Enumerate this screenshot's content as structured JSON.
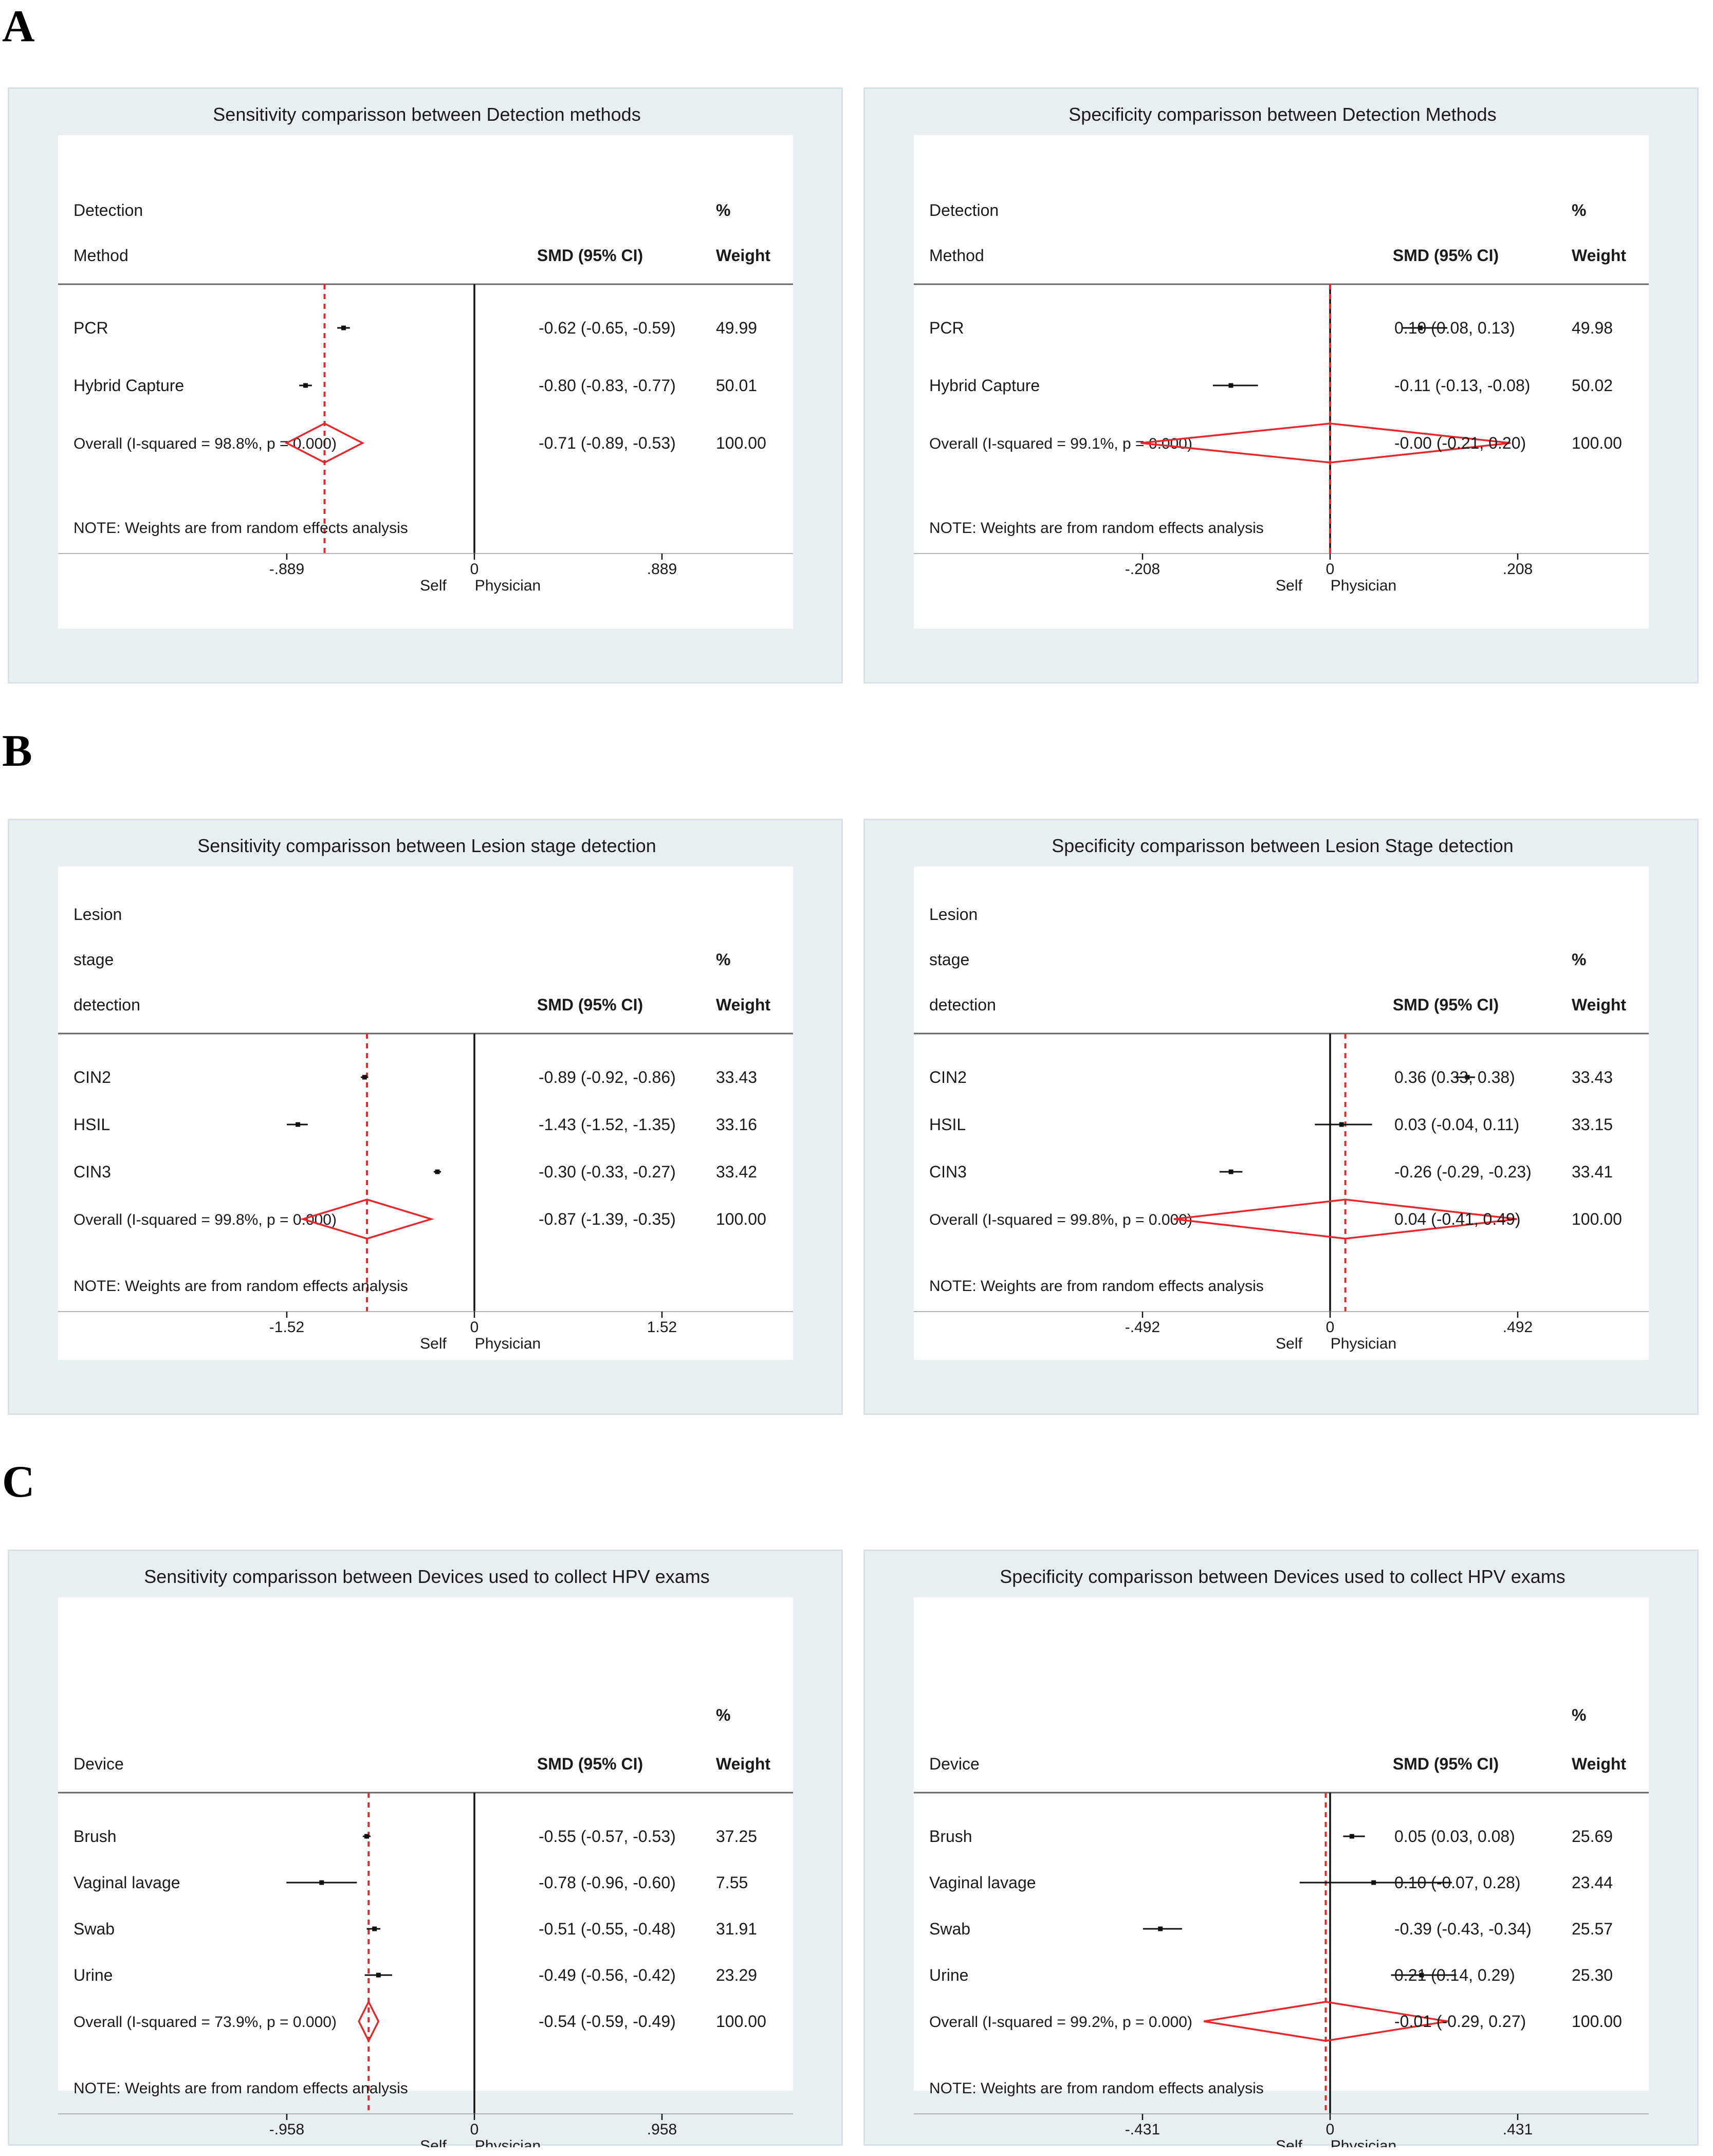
{
  "sections": [
    {
      "letter": "A"
    },
    {
      "letter": "B"
    },
    {
      "letter": "C"
    }
  ],
  "common": {
    "smd_header": "SMD (95% CI)",
    "pct_header": "%",
    "weight_header": "Weight",
    "self_label": "Self",
    "physician_label": "Physician"
  },
  "chart_data": [
    {
      "type": "forest",
      "section": "A",
      "title": "Sensitivity comparisson between Detection methods",
      "group_header": [
        "Detection",
        "Method"
      ],
      "note": "NOTE: Weights are from random effects analysis",
      "xlim": [
        -0.889,
        0.889
      ],
      "xticks": [
        "-.889",
        "0",
        ".889"
      ],
      "overall_label": "Overall  (I-squared = 98.8%, p = 0.000)",
      "rows": [
        {
          "label": "PCR",
          "est": -0.62,
          "lo": -0.65,
          "hi": -0.59,
          "text": "-0.62 (-0.65, -0.59)",
          "weight": "49.99"
        },
        {
          "label": "Hybrid Capture",
          "est": -0.8,
          "lo": -0.83,
          "hi": -0.77,
          "text": "-0.80 (-0.83, -0.77)",
          "weight": "50.01"
        }
      ],
      "overall": {
        "est": -0.71,
        "lo": -0.89,
        "hi": -0.53,
        "text": "-0.71 (-0.89, -0.53)",
        "weight": "100.00"
      }
    },
    {
      "type": "forest",
      "section": "A",
      "title": "Specificity comparisson between Detection Methods",
      "group_header": [
        "Detection",
        "Method"
      ],
      "note": "NOTE: Weights are from random effects analysis",
      "xlim": [
        -0.208,
        0.208
      ],
      "xticks": [
        "-.208",
        "0",
        ".208"
      ],
      "overall_label": "Overall  (I-squared = 99.1%, p = 0.000)",
      "rows": [
        {
          "label": "PCR",
          "est": 0.1,
          "lo": 0.08,
          "hi": 0.13,
          "text": "0.10 (0.08, 0.13)",
          "weight": "49.98"
        },
        {
          "label": "Hybrid Capture",
          "est": -0.11,
          "lo": -0.13,
          "hi": -0.08,
          "text": "-0.11 (-0.13, -0.08)",
          "weight": "50.02"
        }
      ],
      "overall": {
        "est": -0.0,
        "lo": -0.21,
        "hi": 0.2,
        "text": "-0.00 (-0.21, 0.20)",
        "weight": "100.00"
      }
    },
    {
      "type": "forest",
      "section": "B",
      "title": "Sensitivity comparisson between Lesion stage detection",
      "group_header": [
        "Lesion",
        "stage",
        "detection"
      ],
      "note": "NOTE: Weights are from random effects analysis",
      "xlim": [
        -1.52,
        1.52
      ],
      "xticks": [
        "-1.52",
        "0",
        "1.52"
      ],
      "overall_label": "Overall  (I-squared = 99.8%, p = 0.000)",
      "rows": [
        {
          "label": "CIN2",
          "est": -0.89,
          "lo": -0.92,
          "hi": -0.86,
          "text": "-0.89 (-0.92, -0.86)",
          "weight": "33.43"
        },
        {
          "label": "HSIL",
          "est": -1.43,
          "lo": -1.52,
          "hi": -1.35,
          "text": "-1.43 (-1.52, -1.35)",
          "weight": "33.16"
        },
        {
          "label": "CIN3",
          "est": -0.3,
          "lo": -0.33,
          "hi": -0.27,
          "text": "-0.30 (-0.33, -0.27)",
          "weight": "33.42"
        }
      ],
      "overall": {
        "est": -0.87,
        "lo": -1.39,
        "hi": -0.35,
        "text": "-0.87 (-1.39, -0.35)",
        "weight": "100.00"
      }
    },
    {
      "type": "forest",
      "section": "B",
      "title": "Specificity comparisson between Lesion Stage detection",
      "group_header": [
        "Lesion",
        "stage",
        "detection"
      ],
      "note": "NOTE: Weights are from random effects analysis",
      "xlim": [
        -0.492,
        0.492
      ],
      "xticks": [
        "-.492",
        "0",
        ".492"
      ],
      "overall_label": "Overall  (I-squared = 99.8%, p = 0.000)",
      "rows": [
        {
          "label": "CIN2",
          "est": 0.36,
          "lo": 0.33,
          "hi": 0.38,
          "text": "0.36 (0.33, 0.38)",
          "weight": "33.43"
        },
        {
          "label": "HSIL",
          "est": 0.03,
          "lo": -0.04,
          "hi": 0.11,
          "text": "0.03 (-0.04, 0.11)",
          "weight": "33.15"
        },
        {
          "label": "CIN3",
          "est": -0.26,
          "lo": -0.29,
          "hi": -0.23,
          "text": "-0.26 (-0.29, -0.23)",
          "weight": "33.41"
        }
      ],
      "overall": {
        "est": 0.04,
        "lo": -0.41,
        "hi": 0.49,
        "text": "0.04 (-0.41, 0.49)",
        "weight": "100.00"
      }
    },
    {
      "type": "forest",
      "section": "C",
      "title": "Sensitivity comparisson between Devices used to collect HPV exams",
      "group_header": [
        "Device"
      ],
      "note": "NOTE: Weights are from random effects analysis",
      "xlim": [
        -0.958,
        0.958
      ],
      "xticks": [
        "-.958",
        "0",
        ".958"
      ],
      "overall_label": "Overall  (I-squared = 73.9%, p = 0.000)",
      "rows": [
        {
          "label": "Brush",
          "est": -0.55,
          "lo": -0.57,
          "hi": -0.53,
          "text": "-0.55 (-0.57, -0.53)",
          "weight": "37.25"
        },
        {
          "label": "Vaginal lavage",
          "est": -0.78,
          "lo": -0.96,
          "hi": -0.6,
          "text": "-0.78 (-0.96, -0.60)",
          "weight": "7.55"
        },
        {
          "label": "Swab",
          "est": -0.51,
          "lo": -0.55,
          "hi": -0.48,
          "text": "-0.51 (-0.55, -0.48)",
          "weight": "31.91"
        },
        {
          "label": "Urine",
          "est": -0.49,
          "lo": -0.56,
          "hi": -0.42,
          "text": "-0.49 (-0.56, -0.42)",
          "weight": "23.29"
        }
      ],
      "overall": {
        "est": -0.54,
        "lo": -0.59,
        "hi": -0.49,
        "text": "-0.54 (-0.59, -0.49)",
        "weight": "100.00"
      }
    },
    {
      "type": "forest",
      "section": "C",
      "title": "Specificity comparisson between Devices used to collect HPV exams",
      "group_header": [
        "Device"
      ],
      "note": "NOTE: Weights are from random effects analysis",
      "xlim": [
        -0.431,
        0.431
      ],
      "xticks": [
        "-.431",
        "0",
        ".431"
      ],
      "overall_label": "Overall  (I-squared = 99.2%, p = 0.000)",
      "rows": [
        {
          "label": "Brush",
          "est": 0.05,
          "lo": 0.03,
          "hi": 0.08,
          "text": "0.05 (0.03, 0.08)",
          "weight": "25.69"
        },
        {
          "label": "Vaginal lavage",
          "est": 0.1,
          "lo": -0.07,
          "hi": 0.28,
          "text": "0.10 (-0.07, 0.28)",
          "weight": "23.44"
        },
        {
          "label": "Swab",
          "est": -0.39,
          "lo": -0.43,
          "hi": -0.34,
          "text": "-0.39 (-0.43, -0.34)",
          "weight": "25.57"
        },
        {
          "label": "Urine",
          "est": 0.21,
          "lo": 0.14,
          "hi": 0.29,
          "text": "0.21 (0.14, 0.29)",
          "weight": "25.30"
        }
      ],
      "overall": {
        "est": -0.01,
        "lo": -0.29,
        "hi": 0.27,
        "text": "-0.01 (-0.29, 0.27)",
        "weight": "100.00"
      }
    }
  ]
}
